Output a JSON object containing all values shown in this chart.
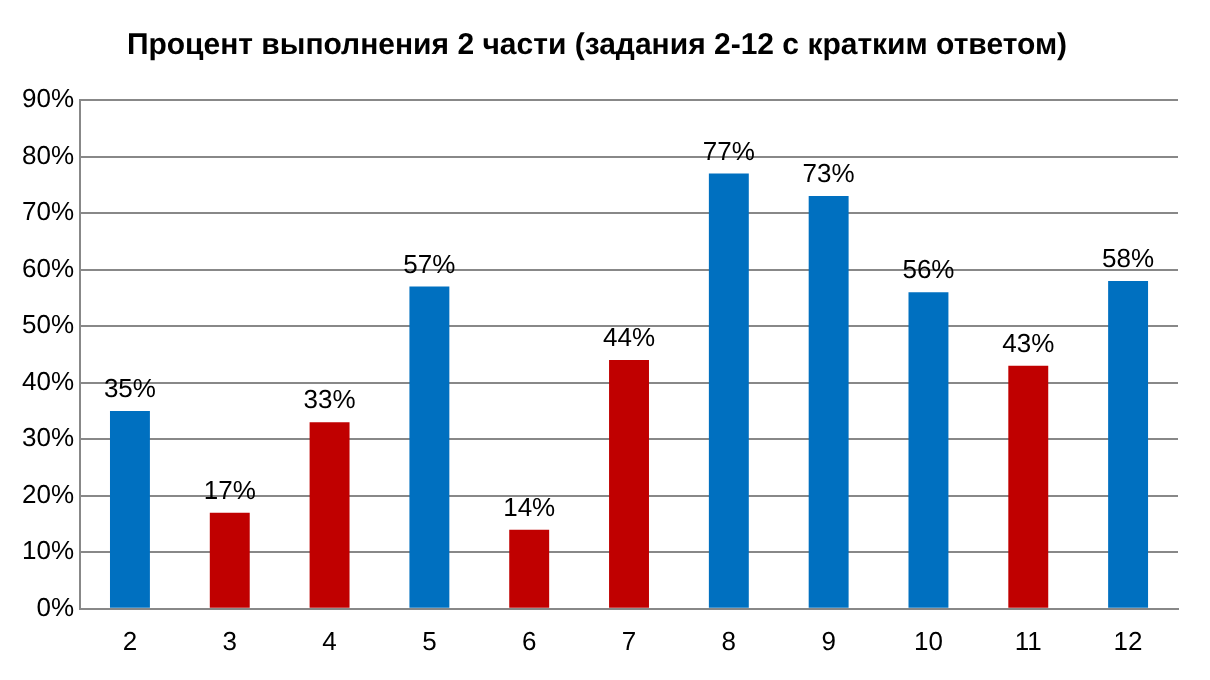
{
  "chart_data": {
    "type": "bar",
    "title": "Процент выполнения 2 части (задания 2-12 с кратким ответом)",
    "categories": [
      "2",
      "3",
      "4",
      "5",
      "6",
      "7",
      "8",
      "9",
      "10",
      "11",
      "12"
    ],
    "values": [
      35,
      17,
      33,
      57,
      14,
      44,
      77,
      73,
      56,
      43,
      58
    ],
    "colors": [
      "#0070c0",
      "#c00000",
      "#c00000",
      "#0070c0",
      "#c00000",
      "#c00000",
      "#0070c0",
      "#0070c0",
      "#0070c0",
      "#c00000",
      "#0070c0"
    ],
    "value_labels": [
      "35%",
      "17%",
      "33%",
      "57%",
      "14%",
      "44%",
      "77%",
      "73%",
      "56%",
      "43%",
      "58%"
    ],
    "ylim": [
      0,
      90
    ],
    "yticks": [
      {
        "value": 0,
        "label": "0%"
      },
      {
        "value": 10,
        "label": "10%"
      },
      {
        "value": 20,
        "label": "20%"
      },
      {
        "value": 30,
        "label": "30%"
      },
      {
        "value": 40,
        "label": "40%"
      },
      {
        "value": 50,
        "label": "50%"
      },
      {
        "value": 60,
        "label": "60%"
      },
      {
        "value": 70,
        "label": "70%"
      },
      {
        "value": 80,
        "label": "80%"
      },
      {
        "value": 90,
        "label": "90%"
      }
    ],
    "grid": "y",
    "legend": false
  }
}
